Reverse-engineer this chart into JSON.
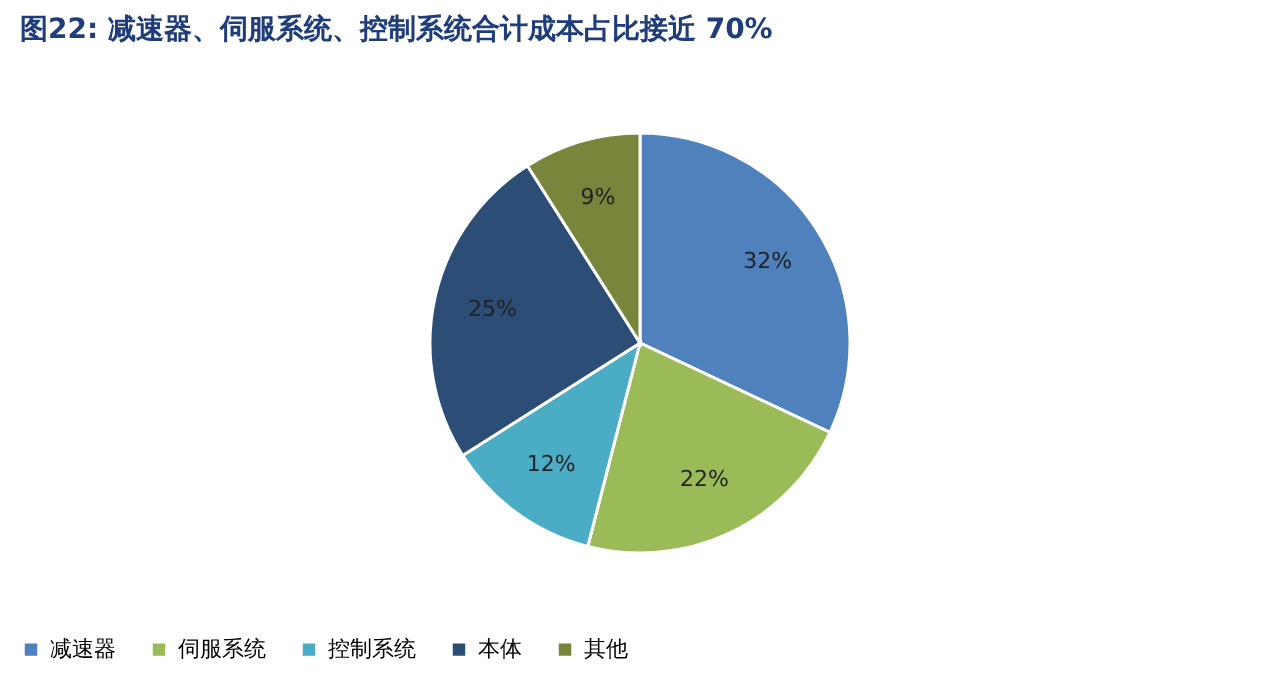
{
  "chart_data": {
    "type": "pie",
    "title": "图22:  减速器、伺服系统、控制系统合计成本占比接近 70%",
    "categories": [
      "减速器",
      "伺服系统",
      "控制系统",
      "本体",
      "其他"
    ],
    "values": [
      32,
      22,
      12,
      25,
      9
    ],
    "colors": [
      "#4f81bd",
      "#9bbb59",
      "#4bacc6",
      "#2c4d75",
      "#77863b"
    ],
    "value_labels": [
      "32%",
      "22%",
      "12%",
      "25%",
      "9%"
    ],
    "legend": "bottom"
  }
}
